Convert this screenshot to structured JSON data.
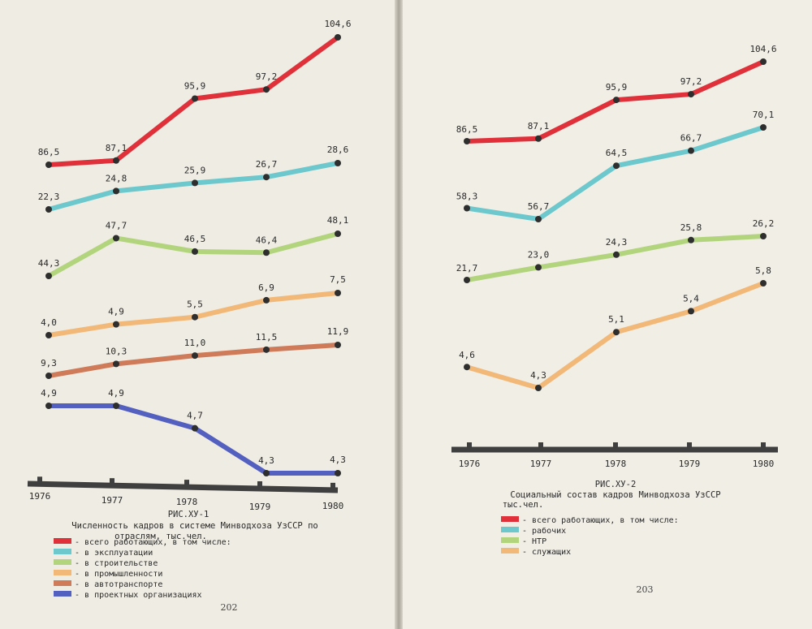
{
  "chart_data": [
    {
      "type": "line",
      "figure_number": "РИС.ХУ-1",
      "title": "Численность кадров в системе Минводхоза УзССР по отраслям, тыс.чел.",
      "title_lines": [
        "Численность кадров в системе Минводхоза УзССР по",
        "отраслям, тыс.чел."
      ],
      "x": [
        "1976",
        "1977",
        "1978",
        "1979",
        "1980"
      ],
      "series": [
        {
          "name": "всего работающих, в том числе:",
          "color": "#e0303a",
          "values": [
            86.5,
            87.1,
            95.9,
            97.2,
            104.6
          ],
          "labels": [
            "86,5",
            "87,1",
            "95,9",
            "97,2",
            "104,6"
          ]
        },
        {
          "name": "в эксплуатации",
          "color": "#6cc8cc",
          "values": [
            22.3,
            24.8,
            25.9,
            26.7,
            28.6
          ],
          "labels": [
            "22,3",
            "24,8",
            "25,9",
            "26,7",
            "28,6"
          ]
        },
        {
          "name": "в строительстве",
          "color": "#b2d47c",
          "values": [
            44.3,
            47.7,
            46.5,
            46.4,
            48.1
          ],
          "labels": [
            "44,3",
            "47,7",
            "46,5",
            "46,4",
            "48,1"
          ]
        },
        {
          "name": "в промышленности",
          "color": "#f2b878",
          "values": [
            4.0,
            4.9,
            5.5,
            6.9,
            7.5
          ],
          "labels": [
            "4,0",
            "4,9",
            "5,5",
            "6,9",
            "7,5"
          ]
        },
        {
          "name": "в автотранспорте",
          "color": "#cf7a58",
          "values": [
            9.3,
            10.3,
            11.0,
            11.5,
            11.9
          ],
          "labels": [
            "9,3",
            "10,3",
            "11,0",
            "11,5",
            "11,9"
          ]
        },
        {
          "name": "в проектных организациях",
          "color": "#5460c0",
          "values": [
            4.9,
            4.9,
            4.7,
            4.3,
            4.3
          ],
          "labels": [
            "4,9",
            "4,9",
            "4,7",
            "4,3",
            "4,3"
          ]
        }
      ],
      "page_number": "202"
    },
    {
      "type": "line",
      "figure_number": "РИС.ХУ-2",
      "title": "Социальный состав кадров Минводхоза УзССР тыс.чел.",
      "title_lines": [
        "Социальный состав кадров Минводхоза УзССР",
        "тыс.чел."
      ],
      "x": [
        "1976",
        "1977",
        "1978",
        "1979",
        "1980"
      ],
      "series": [
        {
          "name": "всего работающих, в том числе:",
          "color": "#e0303a",
          "values": [
            86.5,
            87.1,
            95.9,
            97.2,
            104.6
          ],
          "labels": [
            "86,5",
            "87,1",
            "95,9",
            "97,2",
            "104,6"
          ]
        },
        {
          "name": "рабочих",
          "color": "#6cc8cc",
          "values": [
            58.3,
            56.7,
            64.5,
            66.7,
            70.1
          ],
          "labels": [
            "58,3",
            "56,7",
            "64,5",
            "66,7",
            "70,1"
          ]
        },
        {
          "name": "НТР",
          "color": "#b2d47c",
          "values": [
            21.7,
            23.0,
            24.3,
            25.8,
            26.2
          ],
          "labels": [
            "21,7",
            "23,0",
            "24,3",
            "25,8",
            "26,2"
          ]
        },
        {
          "name": "служащих",
          "color": "#f2b878",
          "values": [
            4.6,
            4.3,
            5.1,
            5.4,
            5.8
          ],
          "labels": [
            "4,6",
            "4,3",
            "5,1",
            "5,4",
            "5,8"
          ]
        }
      ],
      "page_number": "203"
    }
  ]
}
